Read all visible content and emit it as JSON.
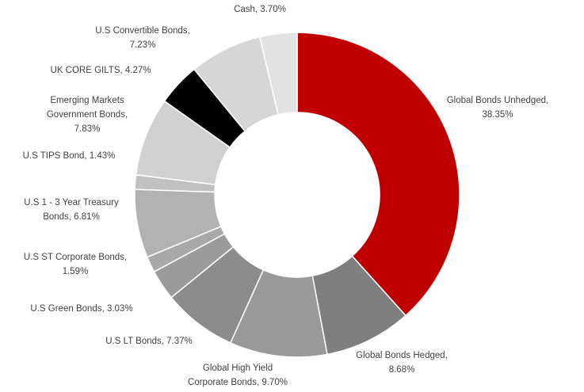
{
  "chart_data": {
    "type": "donut",
    "values": [
      38.35,
      8.68,
      9.7,
      7.37,
      3.03,
      1.59,
      6.81,
      1.43,
      7.83,
      4.27,
      7.23,
      3.7
    ],
    "labels": [
      [
        "Global Bonds Unhedged,",
        "38.35%"
      ],
      [
        "Global Bonds Hedged,",
        "8.68%"
      ],
      [
        "Global High Yield",
        "Corporate Bonds, 9.70%"
      ],
      [
        "U.S LT Bonds, 7.37%"
      ],
      [
        "U.S Green Bonds, 3.03%"
      ],
      [
        "U.S  ST Corporate Bonds,",
        "1.59%"
      ],
      [
        "U.S 1 - 3 Year Treasury",
        "Bonds, 6.81%"
      ],
      [
        "U.S TIPS Bond, 1.43%"
      ],
      [
        "Emerging Markets",
        "Government Bonds,",
        "7.83%"
      ],
      [
        "UK CORE GILTS, 4.27%"
      ],
      [
        "U.S Convertible Bonds,",
        "7.23%"
      ],
      [
        "Cash, 3.70%"
      ]
    ],
    "colors": [
      "#c00000",
      "#7f7f7f",
      "#999999",
      "#8c8c8c",
      "#9b9b9b",
      "#a8a8a8",
      "#b2b2b2",
      "#c0c0c0",
      "#d0d0d0",
      "#000000",
      "#d6d6d6",
      "#e2e2e2"
    ]
  }
}
